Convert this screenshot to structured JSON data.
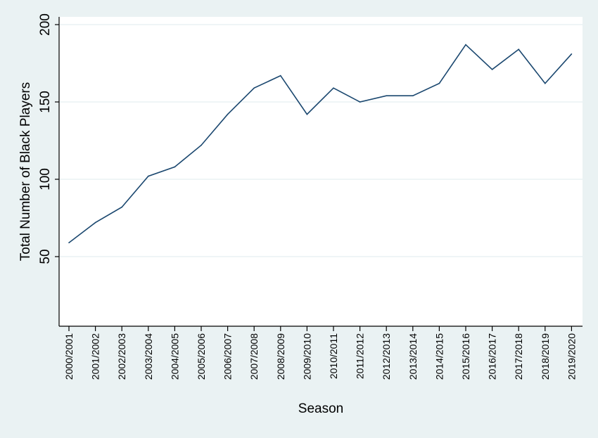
{
  "chart_data": {
    "type": "line",
    "xlabel": "Season",
    "ylabel": "Total Number of Black Players",
    "categories": [
      "2000/2001",
      "2001/2002",
      "2002/2003",
      "2003/2004",
      "2004/2005",
      "2005/2006",
      "2006/2007",
      "2007/2008",
      "2008/2009",
      "2009/2010",
      "2010/2011",
      "2011/2012",
      "2012/2013",
      "2013/2014",
      "2014/2015",
      "2015/2016",
      "2016/2017",
      "2017/2018",
      "2018/2019",
      "2019/2020"
    ],
    "series": [
      {
        "values": [
          59,
          72,
          82,
          102,
          108,
          122,
          142,
          159,
          167,
          142,
          159,
          150,
          154,
          154,
          162,
          187,
          171,
          184,
          162,
          181
        ]
      }
    ],
    "yticks": [
      "50",
      "100",
      "150",
      "200"
    ],
    "ylim": [
      5,
      205
    ],
    "grid": "horizontal",
    "colors": {
      "background": "#eaf2f3",
      "plot_background": "#ffffff",
      "line": "#1a476f",
      "gridline": "#eaf2f3",
      "axis": "#000000"
    }
  }
}
